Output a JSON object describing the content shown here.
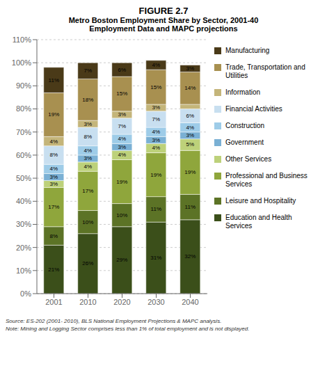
{
  "chart_data": {
    "type": "bar",
    "title": "FIGURE 2.7",
    "subtitle": [
      "Metro Boston Employment Share by Sector, 2001-40",
      "Employment Data and MAPC projections"
    ],
    "annotations": [
      "Source: ES-202 (2001- 2010), BLS National Employment Projections & MAPC analysis.",
      "Note: Mining and Logging Sector comprises less than 1% of total employment and is not displayed."
    ],
    "categories": [
      "2001",
      "2010",
      "2020",
      "2030",
      "2040"
    ],
    "series": [
      {
        "name": "Education and Health Services",
        "color": "#3b4f1a",
        "values": [
          21,
          26,
          29,
          31,
          32
        ],
        "value_labels": [
          "21%",
          "26%",
          "29%",
          "31%",
          "32%"
        ]
      },
      {
        "name": "Leisure and Hospitality",
        "color": "#5c7326",
        "values": [
          8,
          10,
          10,
          11,
          11
        ],
        "value_labels": [
          "8%",
          "10%",
          "10%",
          "11%",
          "11%"
        ]
      },
      {
        "name": "Professional and Business Services",
        "color": "#8fa63c",
        "values": [
          17,
          17,
          19,
          19,
          19
        ],
        "value_labels": [
          "17%",
          "17%",
          "19%",
          "19%",
          "19%"
        ]
      },
      {
        "name": "Other Services",
        "color": "#bdd17a",
        "values": [
          3,
          4,
          4,
          4,
          5
        ],
        "value_labels": [
          "3%",
          "4%",
          "4%",
          "4%",
          "5%"
        ]
      },
      {
        "name": "Government",
        "color": "#7ab0d4",
        "values": [
          3,
          3,
          3,
          3,
          3
        ],
        "value_labels": [
          "3%",
          "3%",
          "3%",
          "3%",
          "3%"
        ]
      },
      {
        "name": "Construction",
        "color": "#9ecce8",
        "values": [
          4,
          4,
          4,
          4,
          4
        ],
        "value_labels": [
          "4%",
          "4%",
          "4%",
          "4%",
          "4%"
        ]
      },
      {
        "name": "Financial Activities",
        "color": "#c8dff0",
        "values": [
          8,
          8,
          7,
          7,
          6
        ],
        "value_labels": [
          "8%",
          "8%",
          "7%",
          "7%",
          "6%"
        ]
      },
      {
        "name": "Information",
        "color": "#c4b57a",
        "values": [
          4,
          3,
          3,
          3,
          2
        ],
        "value_labels": [
          "4%",
          "3%",
          "3%",
          "3%",
          null
        ]
      },
      {
        "name": "Trade, Transportation and Utilities",
        "color": "#a89050",
        "values": [
          19,
          18,
          15,
          15,
          14
        ],
        "value_labels": [
          "19%",
          "18%",
          "15%",
          "15%",
          "14%"
        ]
      },
      {
        "name": "Manufacturing",
        "color": "#4a3a18",
        "values": [
          11,
          7,
          6,
          4,
          3
        ],
        "value_labels": [
          "11%",
          "7%",
          "6%",
          "4%",
          "3%"
        ]
      }
    ],
    "ylim": [
      0,
      110
    ],
    "yticks": [
      {
        "value": 0,
        "label": "0%"
      },
      {
        "value": 10,
        "label": "10%"
      },
      {
        "value": 20,
        "label": "20%"
      },
      {
        "value": 30,
        "label": "30%"
      },
      {
        "value": 40,
        "label": "40%"
      },
      {
        "value": 50,
        "label": "50%"
      },
      {
        "value": 60,
        "label": "60%"
      },
      {
        "value": 70,
        "label": "70%"
      },
      {
        "value": 80,
        "label": "80%"
      },
      {
        "value": 90,
        "label": "90%"
      },
      {
        "value": 100,
        "label": "100%"
      },
      {
        "value": 110,
        "label": "110%"
      }
    ],
    "stacked": true,
    "data_labels": true,
    "grid": true,
    "legend": "right"
  }
}
